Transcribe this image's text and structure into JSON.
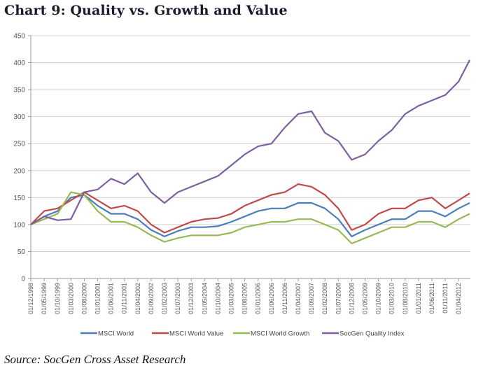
{
  "title": "Chart 9:  Quality vs. Growth and Value",
  "source": "Source: SocGen Cross Asset Research",
  "chart_data": {
    "type": "line",
    "title": "Chart 9:  Quality vs. Growth and Value",
    "xlabel": "",
    "ylabel": "",
    "ylim": [
      0,
      450
    ],
    "yticks": [
      0,
      50,
      100,
      150,
      200,
      250,
      300,
      350,
      400,
      450
    ],
    "grid": true,
    "legend": "bottom",
    "categories": [
      "01/12/1998",
      "01/05/1999",
      "01/10/1999",
      "01/03/2000",
      "01/08/2000",
      "01/01/2001",
      "01/06/2001",
      "01/11/2001",
      "01/04/2002",
      "01/09/2002",
      "01/02/2003",
      "01/07/2003",
      "01/12/2003",
      "01/05/2004",
      "01/10/2004",
      "01/03/2005",
      "01/08/2005",
      "01/01/2006",
      "01/06/2006",
      "01/11/2006",
      "01/04/2007",
      "01/09/2007",
      "01/02/2008",
      "01/07/2008",
      "01/12/2008",
      "01/05/2009",
      "01/10/2009",
      "01/03/2010",
      "01/08/2010",
      "01/01/2011",
      "01/06/2011",
      "01/11/2011",
      "01/04/2012"
    ],
    "x_end_label": "end (approx. 09/2012)",
    "series": [
      {
        "name": "MSCI World",
        "color": "#4a7ebb",
        "values": [
          100,
          115,
          125,
          150,
          155,
          135,
          120,
          120,
          110,
          90,
          78,
          88,
          95,
          95,
          97,
          105,
          115,
          125,
          130,
          130,
          140,
          140,
          130,
          110,
          78,
          90,
          100,
          110,
          110,
          125,
          125,
          115,
          130,
          140
        ]
      },
      {
        "name": "MSCI World Value",
        "color": "#be4b48",
        "values": [
          100,
          125,
          130,
          145,
          160,
          145,
          130,
          135,
          125,
          100,
          85,
          95,
          105,
          110,
          112,
          120,
          135,
          145,
          155,
          160,
          175,
          170,
          155,
          130,
          90,
          100,
          120,
          130,
          130,
          145,
          150,
          130,
          145,
          158
        ]
      },
      {
        "name": "MSCI World Growth",
        "color": "#98b954",
        "values": [
          100,
          110,
          120,
          160,
          155,
          125,
          105,
          105,
          95,
          80,
          68,
          75,
          80,
          80,
          80,
          85,
          95,
          100,
          105,
          105,
          110,
          110,
          100,
          90,
          65,
          75,
          85,
          95,
          95,
          105,
          105,
          95,
          110,
          120
        ]
      },
      {
        "name": "SocGen Quality Index",
        "color": "#7d60a0",
        "values": [
          100,
          115,
          108,
          110,
          160,
          165,
          185,
          175,
          195,
          160,
          140,
          160,
          170,
          180,
          190,
          210,
          230,
          245,
          250,
          280,
          305,
          310,
          270,
          255,
          220,
          230,
          255,
          275,
          305,
          320,
          330,
          340,
          365,
          405
        ]
      }
    ]
  }
}
